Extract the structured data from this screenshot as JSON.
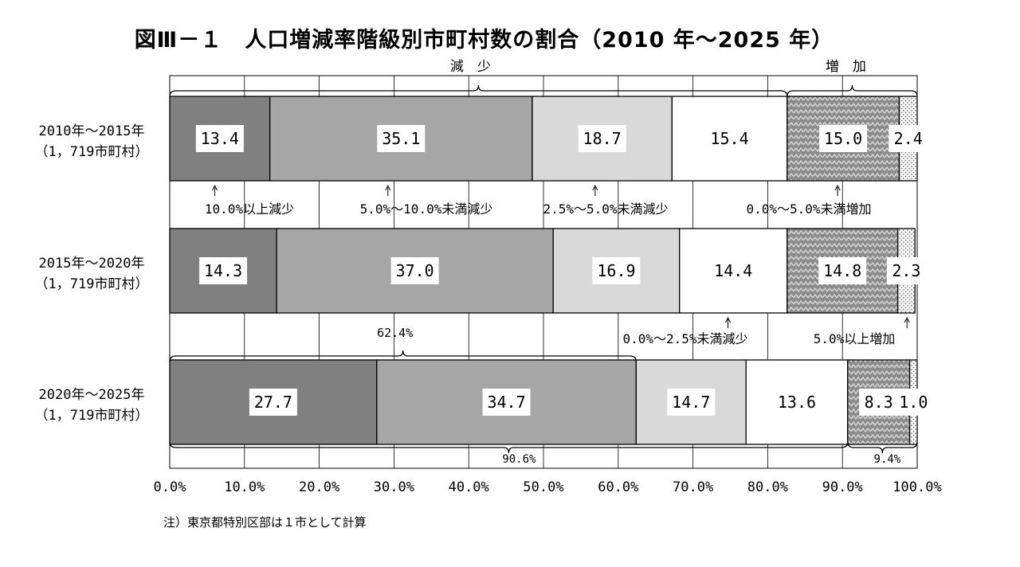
{
  "title": "図Ⅲ－１　人口増減率階級別市町村数の割合（2010 年～2025 年）",
  "note": "注）東京都特別区部は１市として計算",
  "chart_data": {
    "type": "bar",
    "orientation": "horizontal",
    "stacked": true,
    "grid": true,
    "xlim": [
      0,
      100
    ],
    "x_ticks": [
      "0.0%",
      "10.0%",
      "20.0%",
      "30.0%",
      "40.0%",
      "50.0%",
      "60.0%",
      "70.0%",
      "80.0%",
      "90.0%",
      "100.0%"
    ],
    "categories": [
      [
        "2010年～2015年",
        "（1，719市町村）"
      ],
      [
        "2015年～2020年",
        "（1，719市町村）"
      ],
      [
        "2020年～2025年",
        "（1，719市町村）"
      ]
    ],
    "series": [
      {
        "name": "10.0%以上減少",
        "values": [
          13.4,
          14.3,
          27.7
        ],
        "labels": [
          "13.4",
          "14.3",
          "27.7"
        ],
        "color": "#808080"
      },
      {
        "name": "5.0%～10.0%未満減少",
        "values": [
          35.1,
          37.0,
          34.7
        ],
        "labels": [
          "35.1",
          "37.0",
          "34.7"
        ],
        "color": "#a6a6a6"
      },
      {
        "name": "2.5%～5.0%未満減少",
        "values": [
          18.7,
          16.9,
          14.7
        ],
        "labels": [
          "18.7",
          "16.9",
          "14.7"
        ],
        "color": "#d9d9d9"
      },
      {
        "name": "0.0%～2.5%未満減少",
        "values": [
          15.4,
          14.4,
          13.6
        ],
        "labels": [
          "15.4",
          "14.4",
          "13.6"
        ],
        "color": "#ffffff"
      },
      {
        "name": "0.0%～5.0%未満増加",
        "values": [
          15.0,
          14.8,
          8.3
        ],
        "labels": [
          "15.0",
          "14.8",
          "8.3"
        ],
        "color": "#8c8c8c",
        "pattern": "zigzag"
      },
      {
        "name": "5.0%以上増加",
        "values": [
          2.4,
          2.3,
          1.0
        ],
        "labels": [
          "2.4",
          "2.3",
          "1.0"
        ],
        "color": "#ffffff",
        "pattern": "dots"
      }
    ],
    "annotations": {
      "decrease_label": "減　少",
      "increase_label": "増　加",
      "sub_total_label": "62.4%",
      "decrease_total_label": "90.6%",
      "increase_total_label": "9.4%"
    }
  }
}
